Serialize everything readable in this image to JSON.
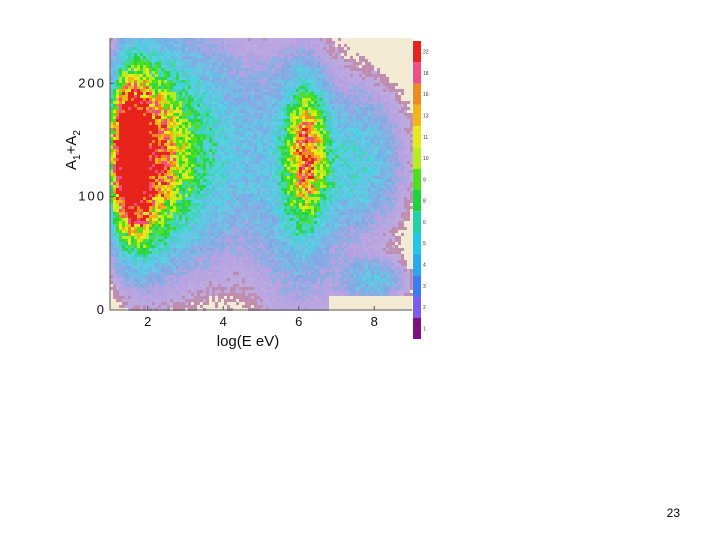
{
  "slide": {
    "page_number": "23"
  },
  "chart_data": {
    "type": "heatmap",
    "title": "",
    "xlabel": "log(E eV)",
    "ylabel_parts": [
      "A",
      "1",
      "+A",
      "2"
    ],
    "xlim": [
      1,
      9
    ],
    "ylim": [
      0,
      240
    ],
    "x_ticks": [
      2,
      4,
      6,
      8
    ],
    "x_tick_labels": [
      "2",
      "4",
      "6",
      "8"
    ],
    "y_ticks": [
      0,
      100,
      200
    ],
    "y_tick_labels": [
      "0",
      "100",
      "200"
    ],
    "background_color": "#f3ead3",
    "color_scale": {
      "labels": [
        "22",
        "18",
        "16",
        "13",
        "11",
        "10",
        "9",
        "8",
        "6",
        "5",
        "4",
        "3",
        "2",
        "1"
      ],
      "colors": [
        "#e8231c",
        "#ef4f84",
        "#f08a1e",
        "#f2b514",
        "#e6ea1a",
        "#b9ec1c",
        "#4fe01c",
        "#1dd43c",
        "#1ed2a6",
        "#1ec8e6",
        "#27a9ee",
        "#3a7df0",
        "#7a5cf0",
        "#7a1280"
      ]
    },
    "clusters": [
      {
        "x": 1.9,
        "y": 135,
        "sx": 0.55,
        "sy": 55,
        "weight": 1.0
      },
      {
        "x": 1.45,
        "y": 135,
        "sx": 0.3,
        "sy": 45,
        "weight": 1.15
      },
      {
        "x": 2.7,
        "y": 140,
        "sx": 0.9,
        "sy": 65,
        "weight": 0.55
      },
      {
        "x": 6.2,
        "y": 140,
        "sx": 0.35,
        "sy": 40,
        "weight": 0.85
      },
      {
        "x": 6.0,
        "y": 110,
        "sx": 0.8,
        "sy": 80,
        "weight": 0.35
      },
      {
        "x": 7.7,
        "y": 130,
        "sx": 0.8,
        "sy": 45,
        "weight": 0.4
      },
      {
        "x": 4.2,
        "y": 140,
        "sx": 1.1,
        "sy": 70,
        "weight": 0.25
      },
      {
        "x": 8.0,
        "y": 25,
        "sx": 0.6,
        "sy": 14,
        "weight": 0.35
      }
    ]
  }
}
